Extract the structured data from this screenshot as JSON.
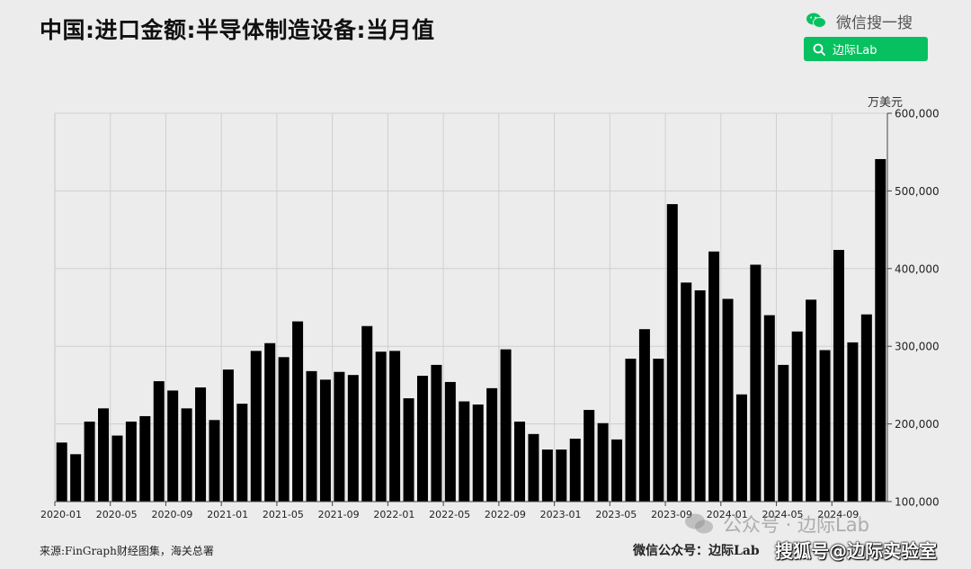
{
  "title": "中国:进口金额:半导体制造设备:当月值",
  "wechat_search": {
    "label": "微信搜一搜",
    "button_label": "边际Lab",
    "accent_color": "#07c160",
    "icons": [
      "wechat-icon",
      "search-icon"
    ]
  },
  "footer": {
    "source": "来源:FinGraph财经图集，海关总署",
    "wechat_account": "微信公众号：边际Lab"
  },
  "watermarks": {
    "public_account": "公众号 · 边际Lab",
    "sohu": "搜狐号@边际实验室"
  },
  "chart_data": {
    "type": "bar",
    "title": "中国:进口金额:半导体制造设备:当月值",
    "ylabel": "万美元",
    "ylim": [
      100000,
      600000
    ],
    "yticks": [
      100000,
      200000,
      300000,
      400000,
      500000,
      600000
    ],
    "ytick_labels": [
      "100,000",
      "200,000",
      "300,000",
      "400,000",
      "500,000",
      "600,000"
    ],
    "y_axis_side": "right",
    "grid": true,
    "bar_color": "#000000",
    "xtick_labels": [
      "2020-01",
      "2020-05",
      "2020-09",
      "2021-01",
      "2021-05",
      "2021-09",
      "2022-01",
      "2022-05",
      "2022-09",
      "2023-01",
      "2023-05",
      "2023-09",
      "2024-01",
      "2024-05",
      "2024-09"
    ],
    "categories": [
      "2020-01",
      "2020-02",
      "2020-03",
      "2020-04",
      "2020-05",
      "2020-06",
      "2020-07",
      "2020-08",
      "2020-09",
      "2020-10",
      "2020-11",
      "2020-12",
      "2021-01",
      "2021-02",
      "2021-03",
      "2021-04",
      "2021-05",
      "2021-06",
      "2021-07",
      "2021-08",
      "2021-09",
      "2021-10",
      "2021-11",
      "2021-12",
      "2022-01",
      "2022-02",
      "2022-03",
      "2022-04",
      "2022-05",
      "2022-06",
      "2022-07",
      "2022-08",
      "2022-09",
      "2022-10",
      "2022-11",
      "2022-12",
      "2023-01",
      "2023-02",
      "2023-03",
      "2023-04",
      "2023-05",
      "2023-06",
      "2023-07",
      "2023-08",
      "2023-09",
      "2023-10",
      "2023-11",
      "2023-12",
      "2024-01",
      "2024-02",
      "2024-03",
      "2024-04",
      "2024-05",
      "2024-06",
      "2024-07",
      "2024-08",
      "2024-09",
      "2024-10",
      "2024-11",
      "2024-12"
    ],
    "values": [
      176000,
      161000,
      203000,
      220000,
      185000,
      203000,
      210000,
      255000,
      243000,
      220000,
      247000,
      205000,
      270000,
      226000,
      294000,
      304000,
      286000,
      332000,
      268000,
      257000,
      267000,
      263000,
      326000,
      293000,
      294000,
      233000,
      262000,
      276000,
      254000,
      229000,
      225000,
      246000,
      296000,
      203000,
      187000,
      167000,
      167000,
      181000,
      218000,
      201000,
      180000,
      284000,
      322000,
      284000,
      483000,
      382000,
      372000,
      422000,
      361000,
      238000,
      405000,
      340000,
      276000,
      319000,
      360000,
      295000,
      424000,
      305000,
      341000,
      541000
    ]
  }
}
